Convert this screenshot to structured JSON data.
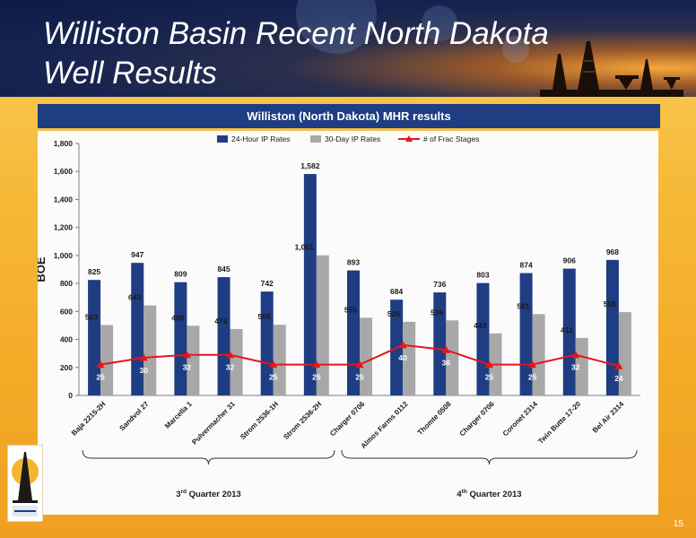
{
  "slide": {
    "title": "Williston Basin Recent North Dakota Well Results",
    "page_number": "15"
  },
  "chart_data": {
    "type": "bar",
    "title": "Williston (North Dakota) MHR results",
    "ylabel": "BOE",
    "xlabel": "",
    "ylim": [
      0,
      1800
    ],
    "yticks": [
      "0",
      "200",
      "400",
      "600",
      "800",
      "1,000",
      "1,200",
      "1,400",
      "1,600",
      "1,800"
    ],
    "grid": false,
    "legend_position": "top",
    "categories": [
      "Baja 2215-2H",
      "Sandvol 27",
      "Marcella 1",
      "Pulvermacher 31",
      "Strom 2536-1H",
      "Strom 2536-2H",
      "Charger 0706",
      "Almos Farms 0112",
      "Thomte 0508",
      "Charger 0706",
      "Coronet 2314",
      "Twin Butte 17-20",
      "Bel Air 2314"
    ],
    "series": [
      {
        "name": "24-Hour IP Rates",
        "type": "bar",
        "color": "#1f3d82",
        "values": [
          825,
          947,
          809,
          845,
          742,
          1582,
          893,
          684,
          736,
          803,
          874,
          906,
          968
        ],
        "labels": [
          "825",
          "947",
          "809",
          "845",
          "742",
          "1,582",
          "893",
          "684",
          "736",
          "803",
          "874",
          "906",
          "968"
        ]
      },
      {
        "name": "30-Day IP Rates",
        "type": "bar",
        "color": "#a8a8a8",
        "values": [
          503,
          643,
          498,
          474,
          505,
          1001,
          555,
          526,
          536,
          443,
          581,
          411,
          595
        ],
        "labels": [
          "503",
          "643",
          "498",
          "474",
          "505",
          "1,001",
          "555",
          "526",
          "536",
          "443",
          "581",
          "411",
          "595"
        ]
      },
      {
        "name": "# of Frac Stages",
        "type": "line",
        "color": "#e8141b",
        "marker": "triangle",
        "values": [
          25,
          30,
          32,
          32,
          25,
          25,
          25,
          40,
          36,
          25,
          25,
          32,
          24
        ],
        "plotted_boe": [
          220,
          270,
          290,
          290,
          220,
          220,
          220,
          360,
          325,
          220,
          220,
          290,
          210
        ]
      }
    ],
    "groups": [
      {
        "label": "3rd Quarter 2013",
        "base": "3",
        "sup": "rd",
        "rest": " Quarter 2013",
        "start": 0,
        "end": 5
      },
      {
        "label": "4th Quarter 2013",
        "base": "4",
        "sup": "th",
        "rest": " Quarter 2013",
        "start": 6,
        "end": 12
      }
    ]
  }
}
